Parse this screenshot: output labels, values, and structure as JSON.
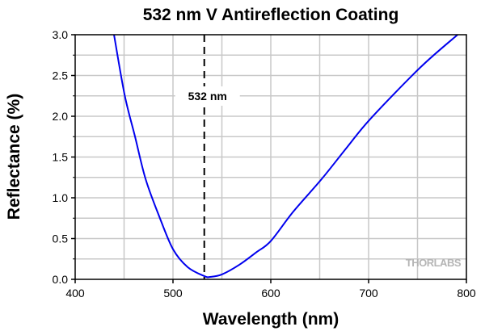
{
  "chart_data": {
    "type": "line",
    "title": "532 nm V Antireflection Coating",
    "xlabel": "Wavelength (nm)",
    "ylabel": "Reflectance (%)",
    "xlim": [
      400,
      800
    ],
    "ylim": [
      0,
      3.0
    ],
    "xticks": [
      400,
      500,
      600,
      700,
      800
    ],
    "xtick_labels": [
      "400",
      "500",
      "600",
      "700",
      "800"
    ],
    "yticks": [
      0,
      0.5,
      1.0,
      1.5,
      2.0,
      2.5,
      3.0
    ],
    "ytick_labels": [
      "0.0",
      "0.5",
      "1.0",
      "1.5",
      "2.0",
      "2.5",
      "3.0"
    ],
    "grid": true,
    "grid_x_step": 50,
    "grid_y_step": 0.25,
    "series": [
      {
        "name": "Reflectance",
        "color": "#0000ee",
        "x": [
          439.7,
          450.6,
          461,
          472,
          486,
          500,
          515,
          532,
          538,
          550,
          568,
          585,
          600,
          623,
          652,
          678,
          702,
          753,
          791
        ],
        "y": [
          3.0,
          2.26,
          1.76,
          1.23,
          0.77,
          0.37,
          0.15,
          0.04,
          0.03,
          0.06,
          0.18,
          0.33,
          0.47,
          0.83,
          1.23,
          1.62,
          1.97,
          2.6,
          3.0
        ]
      }
    ],
    "annotations": [
      {
        "type": "vline",
        "x": 532,
        "style": "dashed",
        "label": "532 nm"
      }
    ],
    "watermark": "THORLABS"
  }
}
